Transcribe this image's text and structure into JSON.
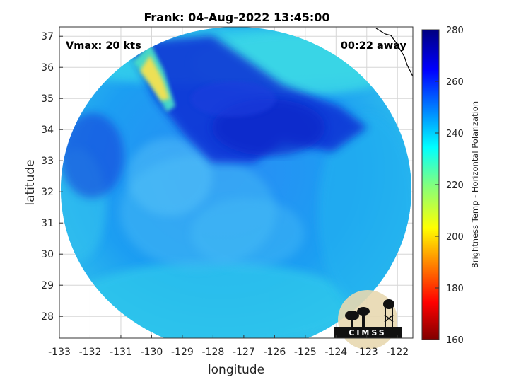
{
  "figure": {
    "title": "Frank: 04-Aug-2022 13:45:00",
    "annotation_left": "Vmax: 20 kts",
    "annotation_right": "00:22 away",
    "xlabel": "longitude",
    "ylabel": "latitude",
    "logo_text": "CIMSS"
  },
  "map": {
    "lon_range": [
      -133,
      -121.5
    ],
    "lat_range": [
      27.3,
      37.3
    ],
    "lon_ticks": [
      -133,
      -132,
      -131,
      -130,
      -129,
      -128,
      -127,
      -126,
      -125,
      -124,
      -123,
      -122
    ],
    "lat_ticks": [
      28,
      29,
      30,
      31,
      32,
      33,
      34,
      35,
      36,
      37
    ],
    "swath_center": [
      -127.3,
      32.2
    ],
    "grid": true
  },
  "colorbar": {
    "label": "Brightness Temp - Horizontal Polarization",
    "range": [
      160,
      280
    ],
    "ticks": [
      160,
      180,
      200,
      220,
      240,
      260,
      280
    ],
    "colormap": "jet"
  },
  "colors": {
    "storm_core": "#0f33d6",
    "swath_base": "#1a8cf0",
    "warm_edge": "#2ed3e8",
    "cold_streak": "#ffe14a",
    "coastline": "#000000"
  },
  "tick_labels": {
    "lon": [
      "-133",
      "-132",
      "-131",
      "-130",
      "-129",
      "-128",
      "-127",
      "-126",
      "-125",
      "-124",
      "-123",
      "-122"
    ],
    "lat": [
      "28",
      "29",
      "30",
      "31",
      "32",
      "33",
      "34",
      "35",
      "36",
      "37"
    ],
    "cb": [
      "160",
      "180",
      "200",
      "220",
      "240",
      "260",
      "280"
    ]
  }
}
